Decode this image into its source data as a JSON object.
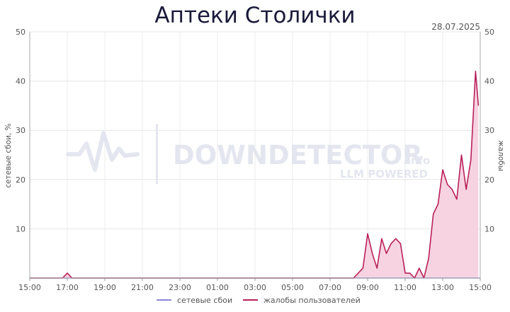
{
  "chart_data": {
    "type": "line",
    "title": "Аптеки Столички",
    "date": "28.07.2025",
    "ylabel_left": "сетевые сбои, %",
    "ylabel_right": "жалобы",
    "ylim": [
      0,
      50
    ],
    "y_ticks": [
      "10",
      "20",
      "30",
      "40",
      "50"
    ],
    "x_ticks": [
      "15:00",
      "17:00",
      "19:00",
      "21:00",
      "23:00",
      "01:00",
      "03:00",
      "05:00",
      "07:00",
      "09:00",
      "11:00",
      "13:00",
      "15:00"
    ],
    "x_hours": [
      0,
      24
    ],
    "watermark": {
      "main": "DOWNDETECTOR",
      "suffix": ".info",
      "sub": "LLM POWERED"
    },
    "series": [
      {
        "name": "сетевые сбои",
        "color": "#8a86d6",
        "x": [
          0,
          24
        ],
        "y": [
          0,
          0
        ]
      },
      {
        "name": "жалобы пользователей",
        "color": "#b8205a",
        "fill": "#f7d3e1",
        "x": [
          0,
          1.75,
          2,
          2.25,
          17.25,
          17.5,
          17.75,
          18,
          18.25,
          18.5,
          18.75,
          19,
          19.25,
          19.5,
          19.75,
          20,
          20.25,
          20.5,
          20.75,
          21,
          21.25,
          21.5,
          21.75,
          22,
          22.25,
          22.5,
          22.75,
          23,
          23.25,
          23.5,
          23.75,
          23.9
        ],
        "y": [
          0,
          0,
          1,
          0,
          0,
          1,
          2,
          9,
          5,
          2,
          8,
          5,
          7,
          8,
          7,
          1,
          1,
          0,
          2,
          0,
          4,
          13,
          15,
          22,
          19,
          18,
          16,
          25,
          18,
          24,
          42,
          35
        ]
      }
    ]
  }
}
